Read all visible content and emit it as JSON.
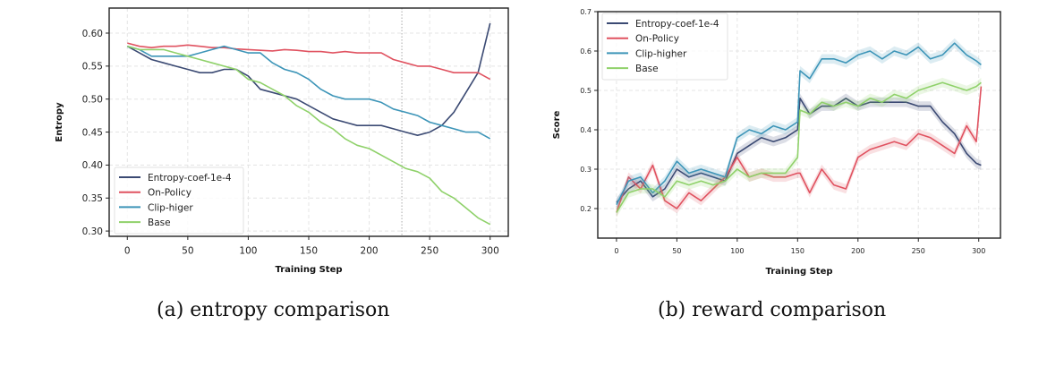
{
  "colors": {
    "Entropy-coef-1e-4": "#3b4a73",
    "On-Policy": "#e05260",
    "Clip": "#3d95b8",
    "Base": "#8fd16a"
  },
  "captions": [
    "(a) entropy comparison",
    "(b) reward comparison"
  ],
  "chart_data": [
    {
      "type": "line",
      "xlabel": "Training Step",
      "ylabel": "Entropy",
      "xlim": [
        -15,
        315
      ],
      "ylim": [
        0.292,
        0.638
      ],
      "xticks": [
        0,
        50,
        100,
        150,
        200,
        250,
        300
      ],
      "yticks": [
        0.3,
        0.35,
        0.4,
        0.45,
        0.5,
        0.55,
        0.6
      ],
      "ytick_labels": [
        "0.30",
        "0.35",
        "0.40",
        "0.45",
        "0.50",
        "0.55",
        "0.60"
      ],
      "grid": true,
      "legend": "lower-left",
      "vline": 227,
      "x": [
        0,
        10,
        20,
        30,
        40,
        50,
        60,
        70,
        80,
        90,
        100,
        110,
        120,
        130,
        140,
        150,
        160,
        170,
        180,
        190,
        200,
        210,
        220,
        230,
        240,
        250,
        260,
        270,
        280,
        290,
        300
      ],
      "series": [
        {
          "name": "Entropy-coef-1e-4",
          "color": "#3b4a73",
          "values": [
            0.58,
            0.57,
            0.56,
            0.555,
            0.55,
            0.545,
            0.54,
            0.54,
            0.545,
            0.545,
            0.535,
            0.515,
            0.51,
            0.505,
            0.5,
            0.49,
            0.48,
            0.47,
            0.465,
            0.46,
            0.46,
            0.46,
            0.455,
            0.45,
            0.445,
            0.45,
            0.46,
            0.48,
            0.51,
            0.54,
            0.615
          ]
        },
        {
          "name": "On-Policy",
          "color": "#e05260",
          "values": [
            0.585,
            0.58,
            0.578,
            0.58,
            0.58,
            0.582,
            0.58,
            0.578,
            0.578,
            0.576,
            0.575,
            0.574,
            0.573,
            0.575,
            0.574,
            0.572,
            0.572,
            0.57,
            0.572,
            0.57,
            0.57,
            0.57,
            0.56,
            0.555,
            0.55,
            0.55,
            0.545,
            0.54,
            0.54,
            0.54,
            0.53
          ]
        },
        {
          "name": "Clip-higer",
          "color": "#3d95b8",
          "values": [
            0.58,
            0.575,
            0.565,
            0.565,
            0.565,
            0.565,
            0.57,
            0.575,
            0.58,
            0.575,
            0.57,
            0.57,
            0.555,
            0.545,
            0.54,
            0.53,
            0.515,
            0.505,
            0.5,
            0.5,
            0.5,
            0.495,
            0.485,
            0.48,
            0.475,
            0.465,
            0.46,
            0.455,
            0.45,
            0.45,
            0.44
          ]
        },
        {
          "name": "Base",
          "color": "#8fd16a",
          "values": [
            0.58,
            0.575,
            0.575,
            0.575,
            0.57,
            0.565,
            0.56,
            0.555,
            0.55,
            0.545,
            0.53,
            0.525,
            0.515,
            0.505,
            0.49,
            0.48,
            0.465,
            0.455,
            0.44,
            0.43,
            0.425,
            0.415,
            0.405,
            0.395,
            0.39,
            0.38,
            0.36,
            0.35,
            0.335,
            0.32,
            0.31
          ]
        }
      ]
    },
    {
      "type": "line",
      "xlabel": "Training Step",
      "ylabel": "Score",
      "xlim": [
        -15.5,
        318
      ],
      "ylim": [
        0.125,
        0.7
      ],
      "xticks": [
        0,
        50,
        100,
        150,
        200,
        250,
        300
      ],
      "yticks": [
        0.2,
        0.3,
        0.4,
        0.5,
        0.6,
        0.7
      ],
      "ytick_labels": [
        "0.2",
        "0.3",
        "0.4",
        "0.5",
        "0.6",
        "0.7"
      ],
      "grid": true,
      "legend": "upper-left",
      "shaded_band": true,
      "x": [
        0,
        10,
        20,
        30,
        40,
        50,
        60,
        70,
        80,
        90,
        100,
        110,
        120,
        130,
        140,
        150,
        152,
        160,
        170,
        180,
        190,
        200,
        210,
        220,
        230,
        240,
        250,
        260,
        270,
        280,
        290,
        298,
        302
      ],
      "series": [
        {
          "name": "Entropy-coef-1e-4",
          "color": "#3b4a73",
          "values": [
            0.215,
            0.25,
            0.27,
            0.23,
            0.25,
            0.3,
            0.28,
            0.29,
            0.28,
            0.27,
            0.34,
            0.36,
            0.38,
            0.37,
            0.38,
            0.4,
            0.48,
            0.44,
            0.46,
            0.46,
            0.48,
            0.46,
            0.47,
            0.47,
            0.47,
            0.47,
            0.46,
            0.46,
            0.42,
            0.39,
            0.34,
            0.315,
            0.31
          ]
        },
        {
          "name": "On-Policy",
          "color": "#e05260",
          "values": [
            0.19,
            0.28,
            0.25,
            0.31,
            0.22,
            0.2,
            0.24,
            0.22,
            0.25,
            0.28,
            0.33,
            0.28,
            0.29,
            0.28,
            0.28,
            0.29,
            0.29,
            0.24,
            0.3,
            0.26,
            0.25,
            0.33,
            0.35,
            0.36,
            0.37,
            0.36,
            0.39,
            0.38,
            0.36,
            0.34,
            0.41,
            0.37,
            0.51
          ]
        },
        {
          "name": "Clip-higher",
          "color": "#3d95b8",
          "values": [
            0.21,
            0.27,
            0.28,
            0.24,
            0.27,
            0.32,
            0.29,
            0.3,
            0.29,
            0.28,
            0.38,
            0.4,
            0.39,
            0.41,
            0.4,
            0.42,
            0.55,
            0.53,
            0.58,
            0.58,
            0.57,
            0.59,
            0.6,
            0.58,
            0.6,
            0.59,
            0.61,
            0.58,
            0.59,
            0.62,
            0.59,
            0.575,
            0.565
          ]
        },
        {
          "name": "Base",
          "color": "#8fd16a",
          "values": [
            0.19,
            0.24,
            0.25,
            0.25,
            0.23,
            0.27,
            0.26,
            0.27,
            0.26,
            0.27,
            0.3,
            0.28,
            0.29,
            0.29,
            0.29,
            0.33,
            0.45,
            0.44,
            0.47,
            0.46,
            0.47,
            0.46,
            0.48,
            0.47,
            0.49,
            0.48,
            0.5,
            0.51,
            0.52,
            0.51,
            0.5,
            0.51,
            0.52
          ]
        }
      ]
    }
  ]
}
